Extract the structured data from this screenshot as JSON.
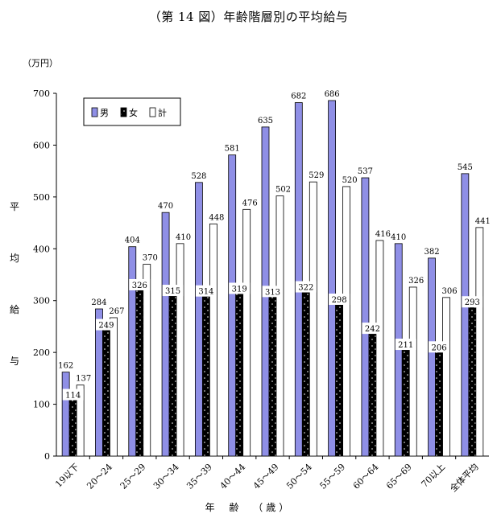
{
  "title": "（第 14 図）年齢階層別の平均給与",
  "unit_label": "（万円）",
  "ylabel_chars": [
    "平",
    "均",
    "給",
    "与"
  ],
  "xlabel": "年 齢 （歳）",
  "colors": {
    "male": "#8f8fe6",
    "female": "#000000",
    "total": "#ffffff",
    "stroke": "#000000"
  },
  "chart_data": {
    "type": "bar",
    "title": "（第 14 図）年齢階層別の平均給与",
    "ylabel": "平均給与",
    "xlabel": "年 齢 （歳）",
    "unit": "（万円）",
    "ylim": [
      0,
      700
    ],
    "yticks": [
      0,
      100,
      200,
      300,
      400,
      500,
      600,
      700
    ],
    "grid": false,
    "legend_position": "top-left",
    "categories": [
      "19以下",
      "20～24",
      "25～29",
      "30～34",
      "35～39",
      "40～44",
      "45～49",
      "50～54",
      "55～59",
      "60～64",
      "65～69",
      "70以上",
      "全体平均"
    ],
    "series": [
      {
        "name": "男",
        "values": [
          162,
          284,
          404,
          470,
          528,
          581,
          635,
          682,
          686,
          537,
          410,
          382,
          545
        ]
      },
      {
        "name": "女",
        "values": [
          114,
          249,
          326,
          315,
          314,
          319,
          313,
          322,
          298,
          242,
          211,
          206,
          293
        ]
      },
      {
        "name": "計",
        "values": [
          137,
          267,
          370,
          410,
          448,
          476,
          502,
          529,
          520,
          416,
          326,
          306,
          441
        ]
      }
    ]
  }
}
